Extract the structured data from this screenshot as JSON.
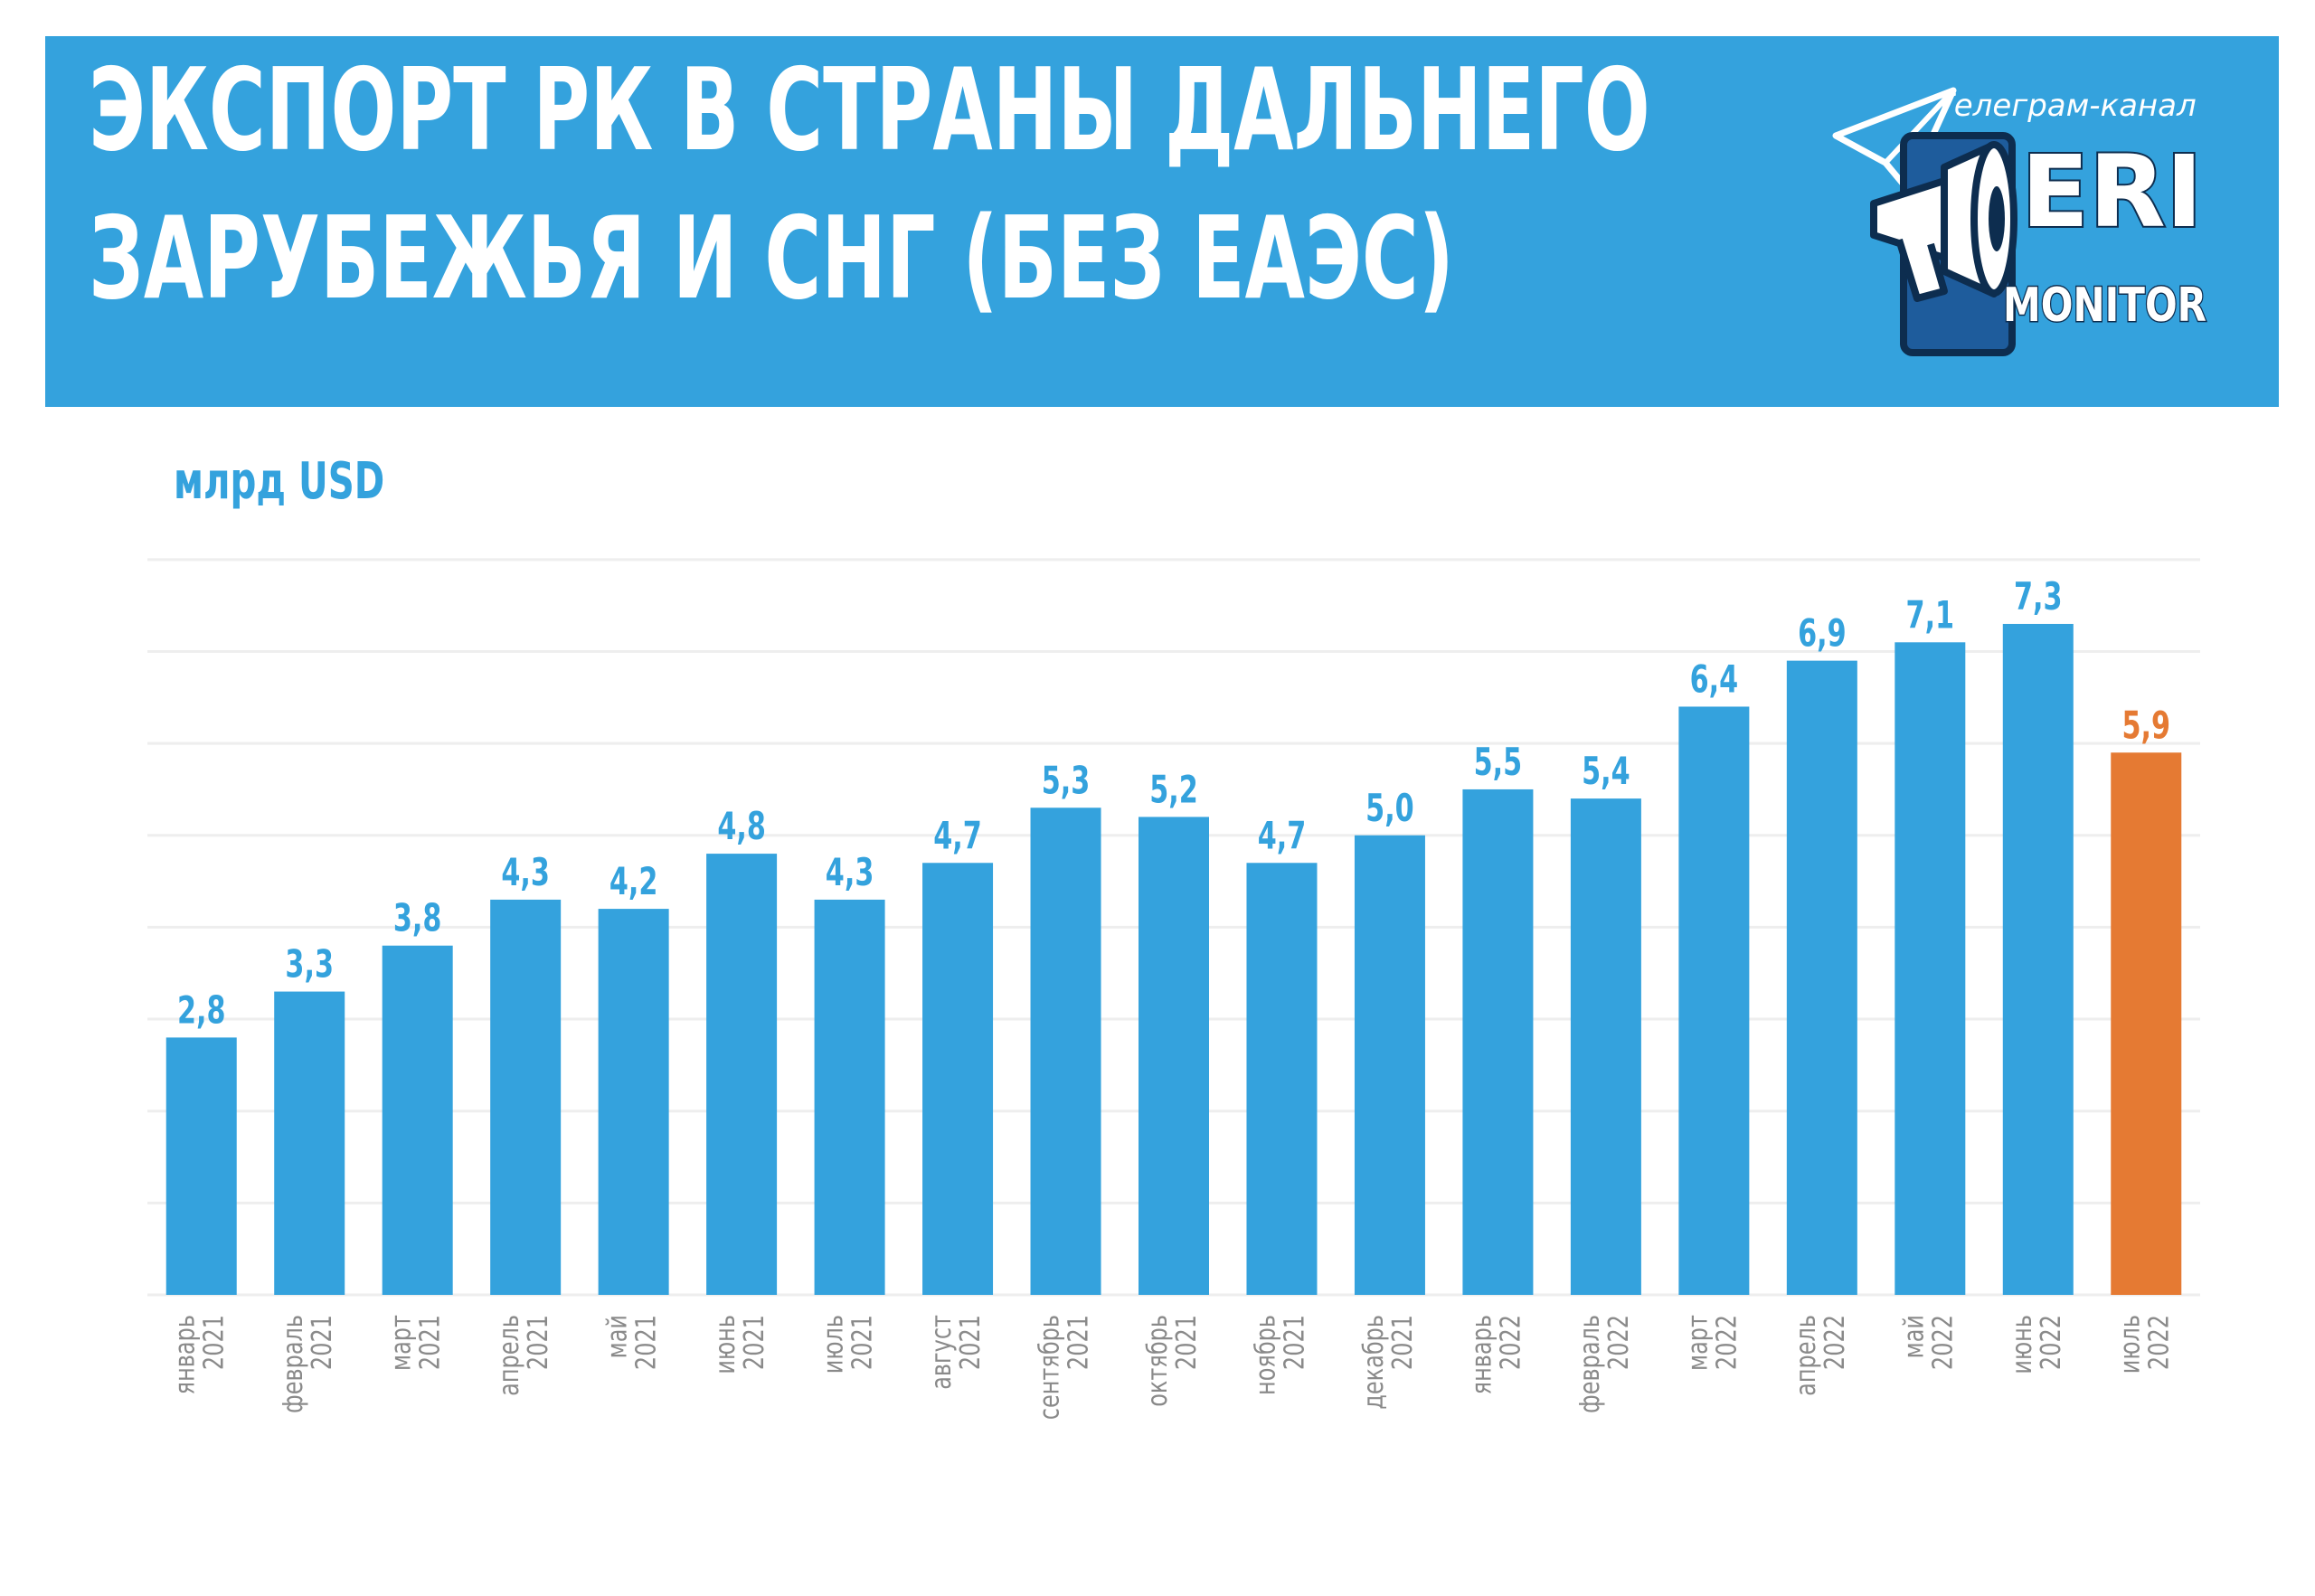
{
  "header": {
    "title_line1": "ЭКСПОРТ РК В СТРАНЫ ДАЛЬНЕГО",
    "title_line2": "ЗАРУБЕЖЬЯ И СНГ (БЕЗ ЕАЭС)",
    "background_color": "#34a2dd"
  },
  "logo": {
    "caption": "Телеграм-канал",
    "brand_line1": "ERI",
    "brand_line2": "MONITOR",
    "icon": "telegram-megaphone-icon"
  },
  "colors": {
    "bar": "#34a2dd",
    "highlight_bar": "#e57a33",
    "value_label": "#34a2dd",
    "highlight_label": "#e57a33",
    "axis_label": "#8a8a8a",
    "grid": "#eeeeee"
  },
  "chart_data": {
    "type": "bar",
    "ylabel": "млрд USD",
    "ylim": [
      0,
      8.5
    ],
    "grid": true,
    "categories": [
      "январь 2021",
      "февраль 2021",
      "март 2021",
      "апрель 2021",
      "май 2021",
      "июнь 2021",
      "июль 2021",
      "август 2021",
      "сентябрь 2021",
      "октябрь 2021",
      "ноябрь 2021",
      "декабрь 2021",
      "январь 2022",
      "февраль 2022",
      "март 2022",
      "апрель 2022",
      "май 2022",
      "июнь 2022",
      "июль 2022"
    ],
    "category_lines": [
      [
        "январь",
        "2021"
      ],
      [
        "февраль",
        "2021"
      ],
      [
        "март",
        "2021"
      ],
      [
        "апрель",
        "2021"
      ],
      [
        "май",
        "2021"
      ],
      [
        "июнь",
        "2021"
      ],
      [
        "июль",
        "2021"
      ],
      [
        "август",
        "2021"
      ],
      [
        "сентябрь",
        "2021"
      ],
      [
        "октябрь",
        "2021"
      ],
      [
        "ноябрь",
        "2021"
      ],
      [
        "декабрь",
        "2021"
      ],
      [
        "январь",
        "2022"
      ],
      [
        "февраль",
        "2022"
      ],
      [
        "март",
        "2022"
      ],
      [
        "апрель",
        "2022"
      ],
      [
        "май",
        "2022"
      ],
      [
        "июнь",
        "2022"
      ],
      [
        "июль",
        "2022"
      ]
    ],
    "values": [
      2.8,
      3.3,
      3.8,
      4.3,
      4.2,
      4.8,
      4.3,
      4.7,
      5.3,
      5.2,
      4.7,
      5.0,
      5.5,
      5.4,
      6.4,
      6.9,
      7.1,
      7.3,
      5.9
    ],
    "value_labels": [
      "2,8",
      "3,3",
      "3,8",
      "4,3",
      "4,2",
      "4,8",
      "4,3",
      "4,7",
      "5,3",
      "5,2",
      "4,7",
      "5,0",
      "5,5",
      "5,4",
      "6,4",
      "6,9",
      "7,1",
      "7,3",
      "5,9"
    ],
    "highlight": [
      "июль 2022"
    ]
  }
}
